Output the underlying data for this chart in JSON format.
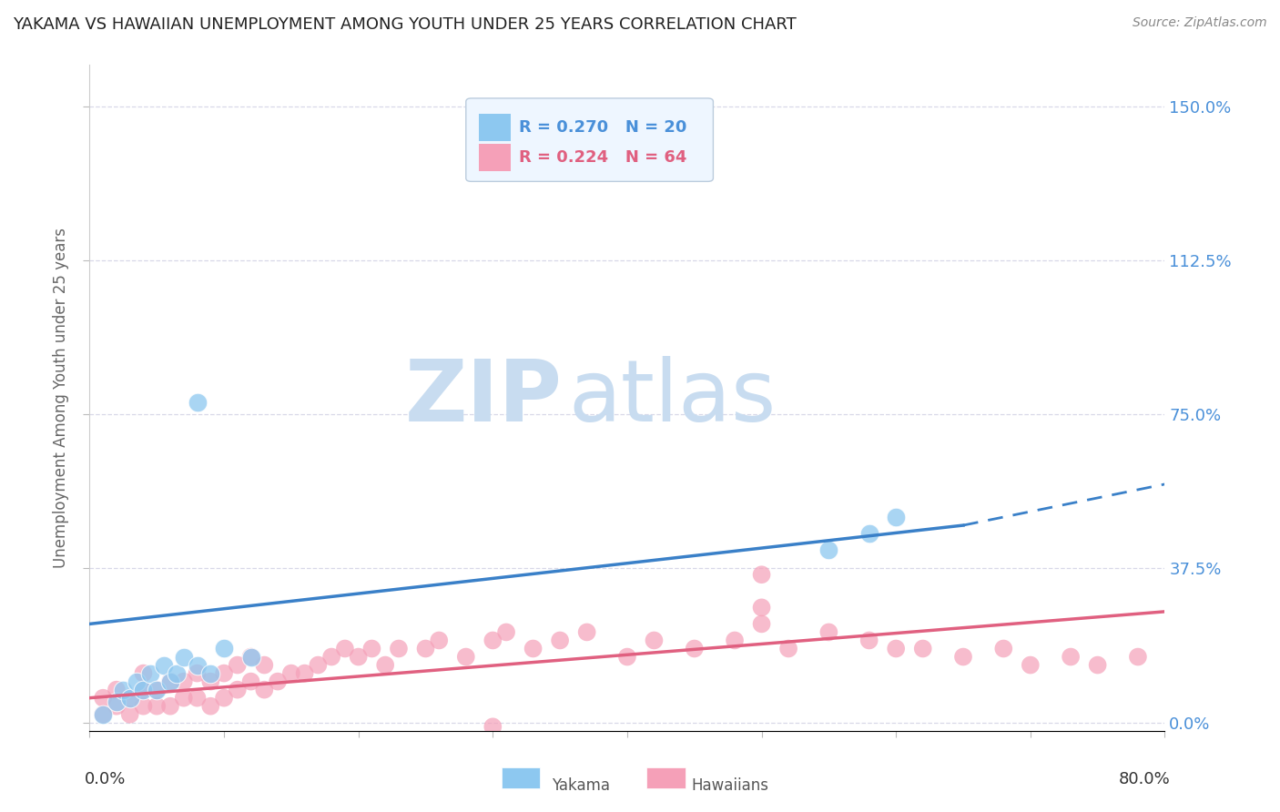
{
  "title": "YAKAMA VS HAWAIIAN UNEMPLOYMENT AMONG YOUTH UNDER 25 YEARS CORRELATION CHART",
  "source": "Source: ZipAtlas.com",
  "ylabel": "Unemployment Among Youth under 25 years",
  "xlim": [
    0.0,
    0.8
  ],
  "ylim": [
    -0.02,
    1.6
  ],
  "yticks": [
    0.0,
    0.375,
    0.75,
    1.125,
    1.5
  ],
  "ytick_labels": [
    "0.0%",
    "37.5%",
    "75.0%",
    "112.5%",
    "150.0%"
  ],
  "yakama_R": 0.27,
  "yakama_N": 20,
  "hawaiian_R": 0.224,
  "hawaiian_N": 64,
  "yakama_color": "#8DC8F0",
  "hawaiian_color": "#F5A0B8",
  "trend_yakama_color": "#3A80C8",
  "trend_hawaiian_color": "#E06080",
  "watermark_color": "#DDEEFF",
  "background_color": "#FFFFFF",
  "grid_color": "#D8D8E8",
  "legend_box_color": "#EEF6FF",
  "right_label_color": "#4A90D9",
  "yakama_x": [
    0.01,
    0.02,
    0.025,
    0.03,
    0.035,
    0.04,
    0.045,
    0.05,
    0.055,
    0.06,
    0.065,
    0.07,
    0.08,
    0.09,
    0.1,
    0.55,
    0.58,
    0.6,
    0.08,
    0.12
  ],
  "yakama_y": [
    0.02,
    0.05,
    0.08,
    0.06,
    0.1,
    0.08,
    0.12,
    0.08,
    0.14,
    0.1,
    0.12,
    0.16,
    0.14,
    0.12,
    0.18,
    0.42,
    0.46,
    0.5,
    0.78,
    0.16
  ],
  "hawaiian_x": [
    0.01,
    0.01,
    0.02,
    0.02,
    0.03,
    0.03,
    0.04,
    0.04,
    0.04,
    0.05,
    0.05,
    0.06,
    0.06,
    0.07,
    0.07,
    0.08,
    0.08,
    0.09,
    0.09,
    0.1,
    0.1,
    0.11,
    0.11,
    0.12,
    0.12,
    0.13,
    0.13,
    0.14,
    0.15,
    0.16,
    0.17,
    0.18,
    0.19,
    0.2,
    0.21,
    0.22,
    0.23,
    0.25,
    0.26,
    0.28,
    0.3,
    0.31,
    0.33,
    0.35,
    0.37,
    0.4,
    0.42,
    0.45,
    0.48,
    0.5,
    0.52,
    0.55,
    0.58,
    0.6,
    0.62,
    0.65,
    0.68,
    0.7,
    0.73,
    0.75,
    0.78,
    0.5,
    0.5,
    0.3
  ],
  "hawaiian_y": [
    0.02,
    0.06,
    0.04,
    0.08,
    0.02,
    0.06,
    0.04,
    0.08,
    0.12,
    0.04,
    0.08,
    0.04,
    0.1,
    0.06,
    0.1,
    0.06,
    0.12,
    0.04,
    0.1,
    0.06,
    0.12,
    0.08,
    0.14,
    0.1,
    0.16,
    0.08,
    0.14,
    0.1,
    0.12,
    0.12,
    0.14,
    0.16,
    0.18,
    0.16,
    0.18,
    0.14,
    0.18,
    0.18,
    0.2,
    0.16,
    0.2,
    0.22,
    0.18,
    0.2,
    0.22,
    0.16,
    0.2,
    0.18,
    0.2,
    0.24,
    0.18,
    0.22,
    0.2,
    0.18,
    0.18,
    0.16,
    0.18,
    0.14,
    0.16,
    0.14,
    0.16,
    0.36,
    0.28,
    -0.01
  ],
  "yakama_trend_x0": 0.0,
  "yakama_trend_y0": 0.24,
  "yakama_trend_x1": 0.65,
  "yakama_trend_y1": 0.48,
  "yakama_trend_x2": 0.8,
  "yakama_trend_y2": 0.58,
  "hawaiian_trend_x0": 0.0,
  "hawaiian_trend_y0": 0.06,
  "hawaiian_trend_x1": 0.8,
  "hawaiian_trend_y1": 0.27
}
